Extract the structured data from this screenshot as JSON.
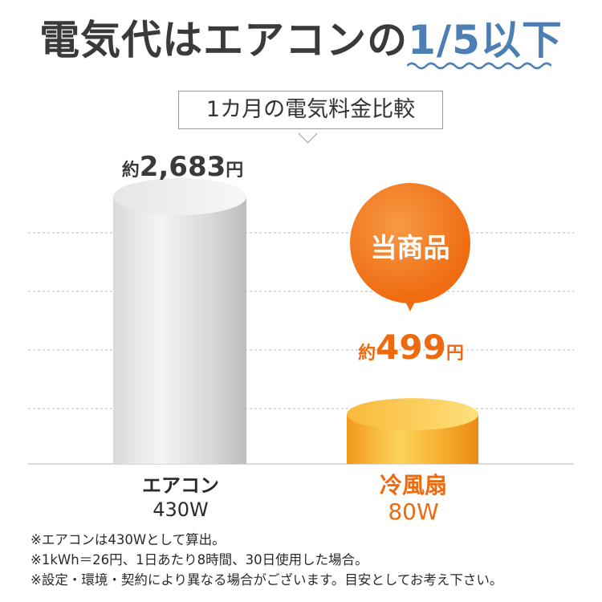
{
  "header": {
    "title_main": "電気代はエアコンの",
    "title_accent": "1/5以下",
    "subtitle": "1カ月の電気料金比較"
  },
  "colors": {
    "accent_blue": "#4d7fb4",
    "orange": "#ee6a10",
    "gray_bar": "#d4d4d4"
  },
  "badge": "当商品",
  "chart_data": {
    "type": "bar",
    "title": "1カ月の電気料金比較",
    "categories": [
      "エアコン 430W",
      "冷風扇 80W"
    ],
    "values": [
      2683,
      499
    ],
    "value_labels": [
      {
        "prefix": "約",
        "number": "2,683",
        "unit": "円"
      },
      {
        "prefix": "約",
        "number": "499",
        "unit": "円"
      }
    ],
    "category_labels": [
      {
        "name": "エアコン",
        "watt": "430W"
      },
      {
        "name": "冷風扇",
        "watt": "80W"
      }
    ],
    "ylim": [
      0,
      2683
    ],
    "grid": true
  },
  "notes": [
    "※エアコンは430Wとして算出。",
    "※1kWh＝26円、1日あたり8時間、30日使用した場合。",
    "※設定・環境・契約により異なる場合がございます。目安としてお考え下さい。"
  ]
}
